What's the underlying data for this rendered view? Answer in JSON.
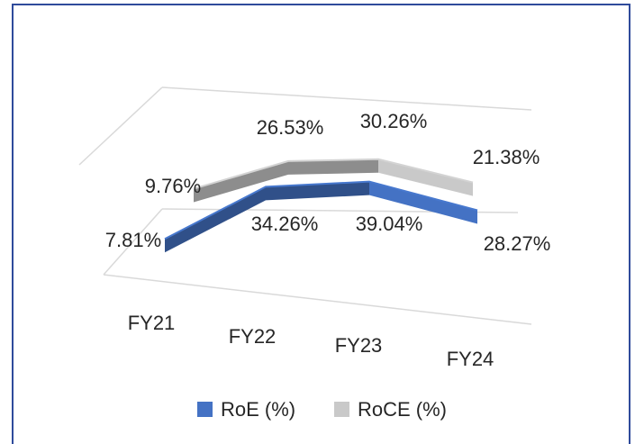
{
  "chart_data": {
    "type": "line3d",
    "categories": [
      "FY21",
      "FY22",
      "FY23",
      "FY24"
    ],
    "series": [
      {
        "name": "RoE (%)",
        "color": "#4472c4",
        "values": [
          7.81,
          34.26,
          39.04,
          28.27
        ],
        "value_labels": [
          "7.81%",
          "34.26%",
          "39.04%",
          "28.27%"
        ]
      },
      {
        "name": "RoCE (%)",
        "color": "#c9c9c9",
        "values": [
          9.76,
          26.53,
          30.26,
          21.38
        ],
        "value_labels": [
          "9.76%",
          "26.53%",
          "30.26%",
          "21.38%"
        ]
      }
    ],
    "legend": "bottom"
  }
}
